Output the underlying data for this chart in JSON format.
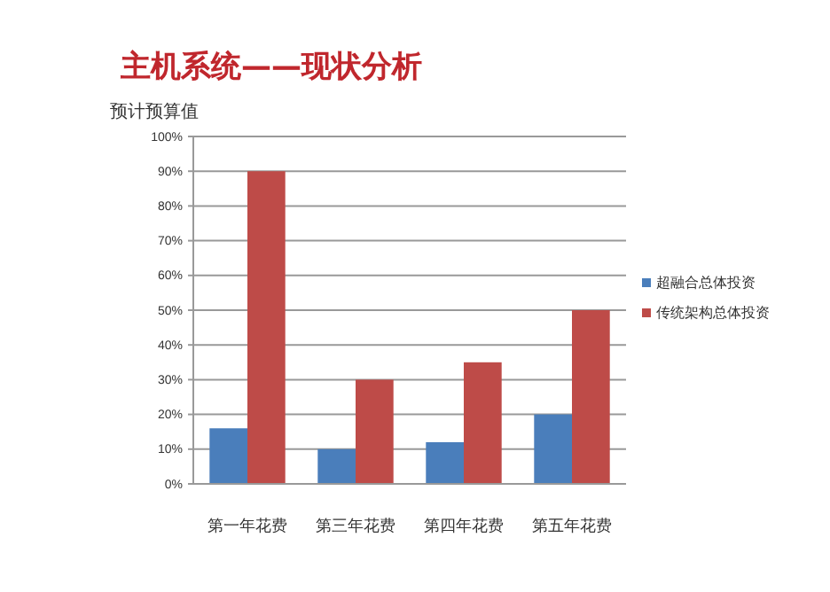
{
  "chart_data": {
    "type": "bar",
    "title": "主机系统——现状分析",
    "ylabel": "预计预算值",
    "categories": [
      "第一年花费",
      "第三年花费",
      "第四年花费",
      "第五年花费"
    ],
    "series": [
      {
        "name": "超融合总体投资",
        "color": "#4a7ebb",
        "values": [
          16,
          10,
          12,
          20
        ]
      },
      {
        "name": "传统架构总体投资",
        "color": "#be4b48",
        "values": [
          90,
          30,
          35,
          50
        ]
      }
    ],
    "ylim": [
      0,
      100
    ],
    "yticks": [
      {
        "value": 0,
        "label": "0%"
      },
      {
        "value": 10,
        "label": "10%"
      },
      {
        "value": 20,
        "label": "20%"
      },
      {
        "value": 30,
        "label": "30%"
      },
      {
        "value": 40,
        "label": "40%"
      },
      {
        "value": 50,
        "label": "50%"
      },
      {
        "value": 60,
        "label": "60%"
      },
      {
        "value": 70,
        "label": "70%"
      },
      {
        "value": 80,
        "label": "80%"
      },
      {
        "value": 90,
        "label": "90%"
      },
      {
        "value": 100,
        "label": "100%"
      }
    ],
    "grid": "y",
    "legend": "right"
  }
}
